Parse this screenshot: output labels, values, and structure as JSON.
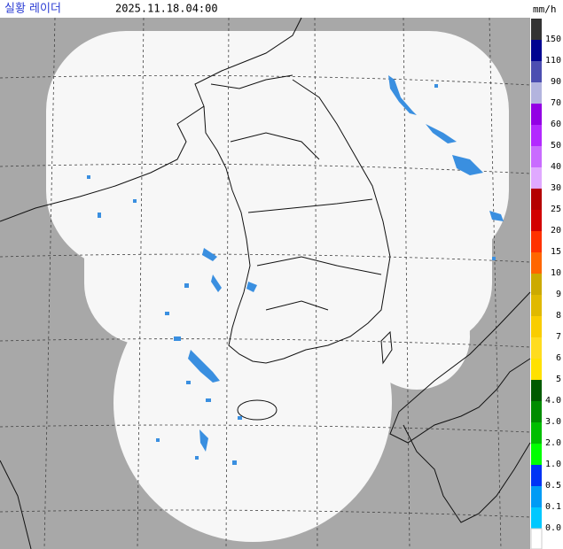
{
  "header": {
    "title": "실황 레이더",
    "time": "2025.11.18.04:00",
    "unit": "mm/h"
  },
  "legend": {
    "items": [
      {
        "label": "150",
        "color": "#333333"
      },
      {
        "label": "110",
        "color": "#000390"
      },
      {
        "label": "90",
        "color": "#4c4eb1"
      },
      {
        "label": "70",
        "color": "#b3b4de"
      },
      {
        "label": "60",
        "color": "#9300e4"
      },
      {
        "label": "50",
        "color": "#b329ff"
      },
      {
        "label": "40",
        "color": "#c96bff"
      },
      {
        "label": "30",
        "color": "#e0a9ff"
      },
      {
        "label": "25",
        "color": "#b40000"
      },
      {
        "label": "20",
        "color": "#d20000"
      },
      {
        "label": "15",
        "color": "#ff3200"
      },
      {
        "label": "10",
        "color": "#ff6600"
      },
      {
        "label": "9",
        "color": "#ccaa00"
      },
      {
        "label": "8",
        "color": "#e0b900"
      },
      {
        "label": "7",
        "color": "#f9cd00"
      },
      {
        "label": "6",
        "color": "#ffdc1f"
      },
      {
        "label": "5",
        "color": "#ffe100"
      },
      {
        "label": "4.0",
        "color": "#005a00"
      },
      {
        "label": "3.0",
        "color": "#008c00"
      },
      {
        "label": "2.0",
        "color": "#00be00"
      },
      {
        "label": "1.0",
        "color": "#00ff00"
      },
      {
        "label": "0.5",
        "color": "#0033f5"
      },
      {
        "label": "0.1",
        "color": "#009bf5"
      },
      {
        "label": "0.0",
        "color": "#00c8ff"
      }
    ]
  }
}
